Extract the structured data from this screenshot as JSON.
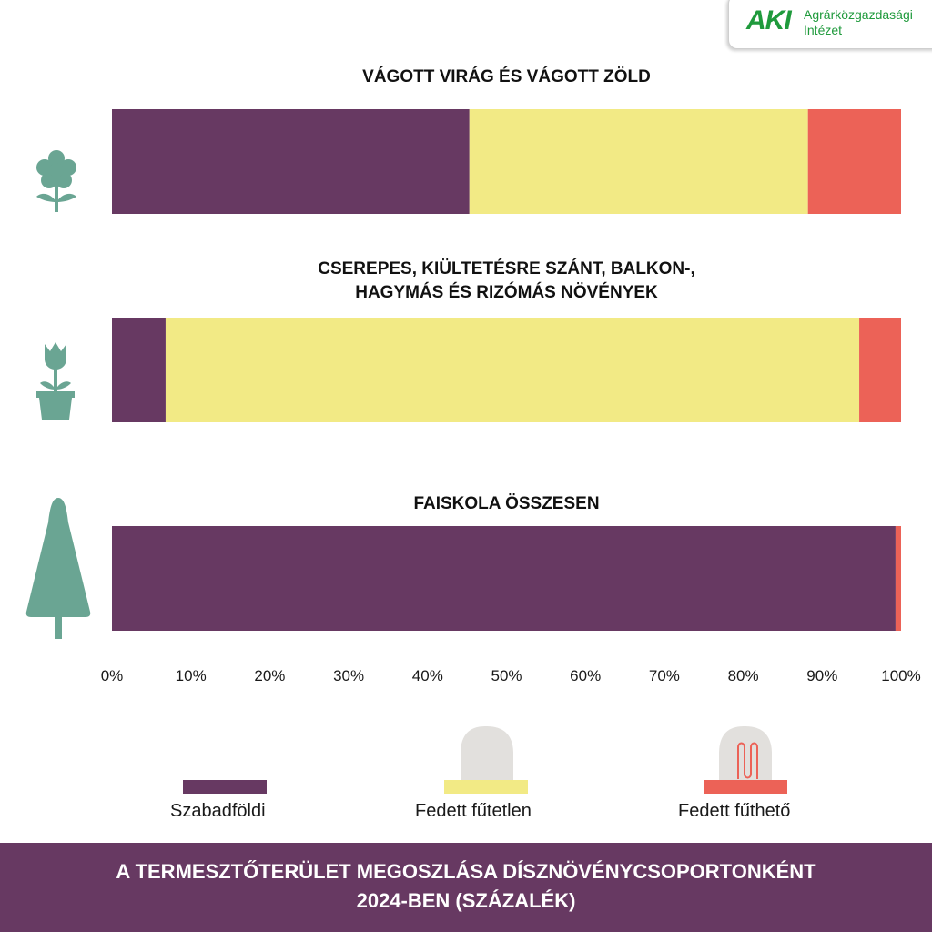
{
  "logo": {
    "mark": "AKI",
    "name_line1": "Agrárközgazdasági",
    "name_line2": "Intézet"
  },
  "chart_data": {
    "type": "bar",
    "orientation": "horizontal-stacked-100",
    "categories": [
      "VÁGOTT VIRÁG ÉS VÁGOTT ZÖLD",
      "CSEREPES, KIÜLTETÉSRE SZÁNT,  BALKON-, HAGYMÁS ÉS RIZÓMÁS NÖVÉNYEK",
      "FAISKOLA ÖSSZESEN"
    ],
    "category_lines": [
      [
        "VÁGOTT VIRÁG ÉS VÁGOTT ZÖLD"
      ],
      [
        "CSEREPES, KIÜLTETÉSRE SZÁNT,  BALKON-,",
        "HAGYMÁS ÉS RIZÓMÁS NÖVÉNYEK"
      ],
      [
        "FAISKOLA ÖSSZESEN"
      ]
    ],
    "category_icons": [
      "flower-icon",
      "potted-tulip-icon",
      "conifer-tree-icon"
    ],
    "series": [
      {
        "name": "Szabadföldi",
        "color": "#673962",
        "values": [
          45.3,
          6.8,
          99.3
        ]
      },
      {
        "name": "Fedett fűtetlen",
        "color": "#f2ea85",
        "values": [
          42.9,
          87.9,
          0
        ]
      },
      {
        "name": "Fedett fűthető",
        "color": "#ec6257",
        "values": [
          11.8,
          5.3,
          0.7
        ]
      }
    ],
    "xlim": [
      0,
      100
    ],
    "xticks": [
      "0%",
      "10%",
      "20%",
      "30%",
      "40%",
      "50%",
      "60%",
      "70%",
      "80%",
      "90%",
      "100%"
    ],
    "legend": "bottom",
    "legend_icons": [
      "",
      "greenhouse-icon",
      "heated-greenhouse-icon"
    ],
    "grid": false,
    "title": "A TERMESZTŐTERÜLET MEGOSZLÁSA DÍSZNÖVÉNYCSOPORTONKÉNT 2024-BEN (SZÁZALÉK)"
  },
  "footer": {
    "line1": "A TERMESZTŐTERÜLET MEGOSZLÁSA DÍSZNÖVÉNYCSOPORTONKÉNT",
    "line2": "2024-BEN (SZÁZALÉK)"
  },
  "colors": {
    "icon": "#6aa593",
    "footer_bg": "#673962",
    "logo_green": "#1f9a3c"
  }
}
